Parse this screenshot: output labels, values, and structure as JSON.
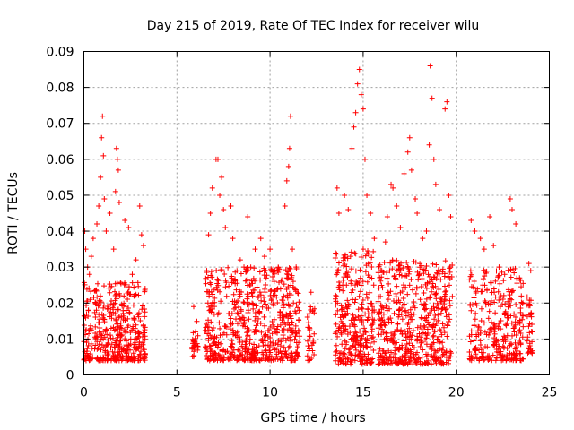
{
  "chart_data": {
    "type": "scatter",
    "title": "Day 215 of 2019, Rate Of TEC Index for receiver wilu",
    "xlabel": "GPS time / hours",
    "ylabel": "ROTI / TECUs",
    "xlim": [
      0,
      25
    ],
    "ylim": [
      0,
      0.09
    ],
    "x_ticks": [
      0,
      5,
      10,
      15,
      20,
      25
    ],
    "y_ticks": [
      0,
      0.01,
      0.02,
      0.03,
      0.04,
      0.05,
      0.06,
      0.07,
      0.08,
      0.09
    ],
    "x_tick_labels": [
      "0",
      "5",
      "10",
      "15",
      "20",
      "25"
    ],
    "y_tick_labels": [
      "0",
      "0.01",
      "0.02",
      "0.03",
      "0.04",
      "0.05",
      "0.06",
      "0.07",
      "0.08",
      "0.09"
    ],
    "grid": true,
    "marker": "+",
    "color": "#ff0000",
    "series": [
      {
        "name": "ROTI",
        "points": [
          [
            0.05,
            0.04
          ],
          [
            0.1,
            0.035
          ],
          [
            0.2,
            0.03
          ],
          [
            0.3,
            0.028
          ],
          [
            0.4,
            0.033
          ],
          [
            0.5,
            0.038
          ],
          [
            0.7,
            0.042
          ],
          [
            0.8,
            0.047
          ],
          [
            0.9,
            0.055
          ],
          [
            0.95,
            0.066
          ],
          [
            1.0,
            0.072
          ],
          [
            1.05,
            0.061
          ],
          [
            1.1,
            0.049
          ],
          [
            1.2,
            0.04
          ],
          [
            1.4,
            0.045
          ],
          [
            1.6,
            0.035
          ],
          [
            1.7,
            0.051
          ],
          [
            1.75,
            0.063
          ],
          [
            1.8,
            0.06
          ],
          [
            1.85,
            0.057
          ],
          [
            1.9,
            0.048
          ],
          [
            2.2,
            0.043
          ],
          [
            2.4,
            0.041
          ],
          [
            2.6,
            0.028
          ],
          [
            2.8,
            0.032
          ],
          [
            3.0,
            0.047
          ],
          [
            3.1,
            0.039
          ],
          [
            3.2,
            0.036
          ],
          [
            5.9,
            0.019
          ],
          [
            6.0,
            0.012
          ],
          [
            6.1,
            0.008
          ],
          [
            6.6,
            0.029
          ],
          [
            6.7,
            0.039
          ],
          [
            6.8,
            0.045
          ],
          [
            6.9,
            0.052
          ],
          [
            7.1,
            0.06
          ],
          [
            7.2,
            0.06
          ],
          [
            7.3,
            0.05
          ],
          [
            7.4,
            0.055
          ],
          [
            7.5,
            0.046
          ],
          [
            7.6,
            0.041
          ],
          [
            7.9,
            0.047
          ],
          [
            8.0,
            0.038
          ],
          [
            8.4,
            0.032
          ],
          [
            8.6,
            0.03
          ],
          [
            8.8,
            0.044
          ],
          [
            9.2,
            0.035
          ],
          [
            9.5,
            0.038
          ],
          [
            9.7,
            0.033
          ],
          [
            10.0,
            0.035
          ],
          [
            10.4,
            0.029
          ],
          [
            10.8,
            0.047
          ],
          [
            10.9,
            0.054
          ],
          [
            11.0,
            0.058
          ],
          [
            11.05,
            0.063
          ],
          [
            11.1,
            0.072
          ],
          [
            11.2,
            0.035
          ],
          [
            11.4,
            0.03
          ],
          [
            12.2,
            0.023
          ],
          [
            12.3,
            0.018
          ],
          [
            13.6,
            0.052
          ],
          [
            13.7,
            0.045
          ],
          [
            14.0,
            0.05
          ],
          [
            14.2,
            0.046
          ],
          [
            14.4,
            0.063
          ],
          [
            14.5,
            0.069
          ],
          [
            14.6,
            0.073
          ],
          [
            14.7,
            0.081
          ],
          [
            14.8,
            0.085
          ],
          [
            14.9,
            0.078
          ],
          [
            15.0,
            0.074
          ],
          [
            15.1,
            0.06
          ],
          [
            15.2,
            0.05
          ],
          [
            15.4,
            0.045
          ],
          [
            15.6,
            0.038
          ],
          [
            16.0,
            0.029
          ],
          [
            16.2,
            0.037
          ],
          [
            16.3,
            0.044
          ],
          [
            16.5,
            0.053
          ],
          [
            16.6,
            0.052
          ],
          [
            16.8,
            0.047
          ],
          [
            17.0,
            0.041
          ],
          [
            17.2,
            0.056
          ],
          [
            17.4,
            0.062
          ],
          [
            17.5,
            0.066
          ],
          [
            17.6,
            0.057
          ],
          [
            17.8,
            0.049
          ],
          [
            17.9,
            0.045
          ],
          [
            18.2,
            0.038
          ],
          [
            18.4,
            0.04
          ],
          [
            18.55,
            0.064
          ],
          [
            18.6,
            0.086
          ],
          [
            18.7,
            0.077
          ],
          [
            18.8,
            0.06
          ],
          [
            18.9,
            0.053
          ],
          [
            19.1,
            0.046
          ],
          [
            19.4,
            0.074
          ],
          [
            19.5,
            0.076
          ],
          [
            19.6,
            0.05
          ],
          [
            19.7,
            0.044
          ],
          [
            20.8,
            0.043
          ],
          [
            21.0,
            0.04
          ],
          [
            21.3,
            0.038
          ],
          [
            21.5,
            0.035
          ],
          [
            21.8,
            0.044
          ],
          [
            22.0,
            0.036
          ],
          [
            22.3,
            0.03
          ],
          [
            22.6,
            0.028
          ],
          [
            22.9,
            0.049
          ],
          [
            23.0,
            0.046
          ],
          [
            23.2,
            0.042
          ],
          [
            23.4,
            0.027
          ],
          [
            23.9,
            0.031
          ],
          [
            24.0,
            0.029
          ]
        ],
        "clusters": [
          {
            "x_range": [
              0.0,
              3.3
            ],
            "y_range": [
              0.004,
              0.026
            ],
            "count": 420
          },
          {
            "x_range": [
              5.8,
              6.2
            ],
            "y_range": [
              0.005,
              0.016
            ],
            "count": 25
          },
          {
            "x_range": [
              6.5,
              11.6
            ],
            "y_range": [
              0.004,
              0.03
            ],
            "count": 620
          },
          {
            "x_range": [
              12.0,
              12.4
            ],
            "y_range": [
              0.004,
              0.02
            ],
            "count": 30
          },
          {
            "x_range": [
              13.5,
              15.6
            ],
            "y_range": [
              0.003,
              0.035
            ],
            "count": 300
          },
          {
            "x_range": [
              15.8,
              19.8
            ],
            "y_range": [
              0.003,
              0.032
            ],
            "count": 520
          },
          {
            "x_range": [
              20.7,
              23.6
            ],
            "y_range": [
              0.004,
              0.03
            ],
            "count": 300
          },
          {
            "x_range": [
              23.8,
              24.1
            ],
            "y_range": [
              0.006,
              0.022
            ],
            "count": 35
          }
        ]
      }
    ]
  }
}
